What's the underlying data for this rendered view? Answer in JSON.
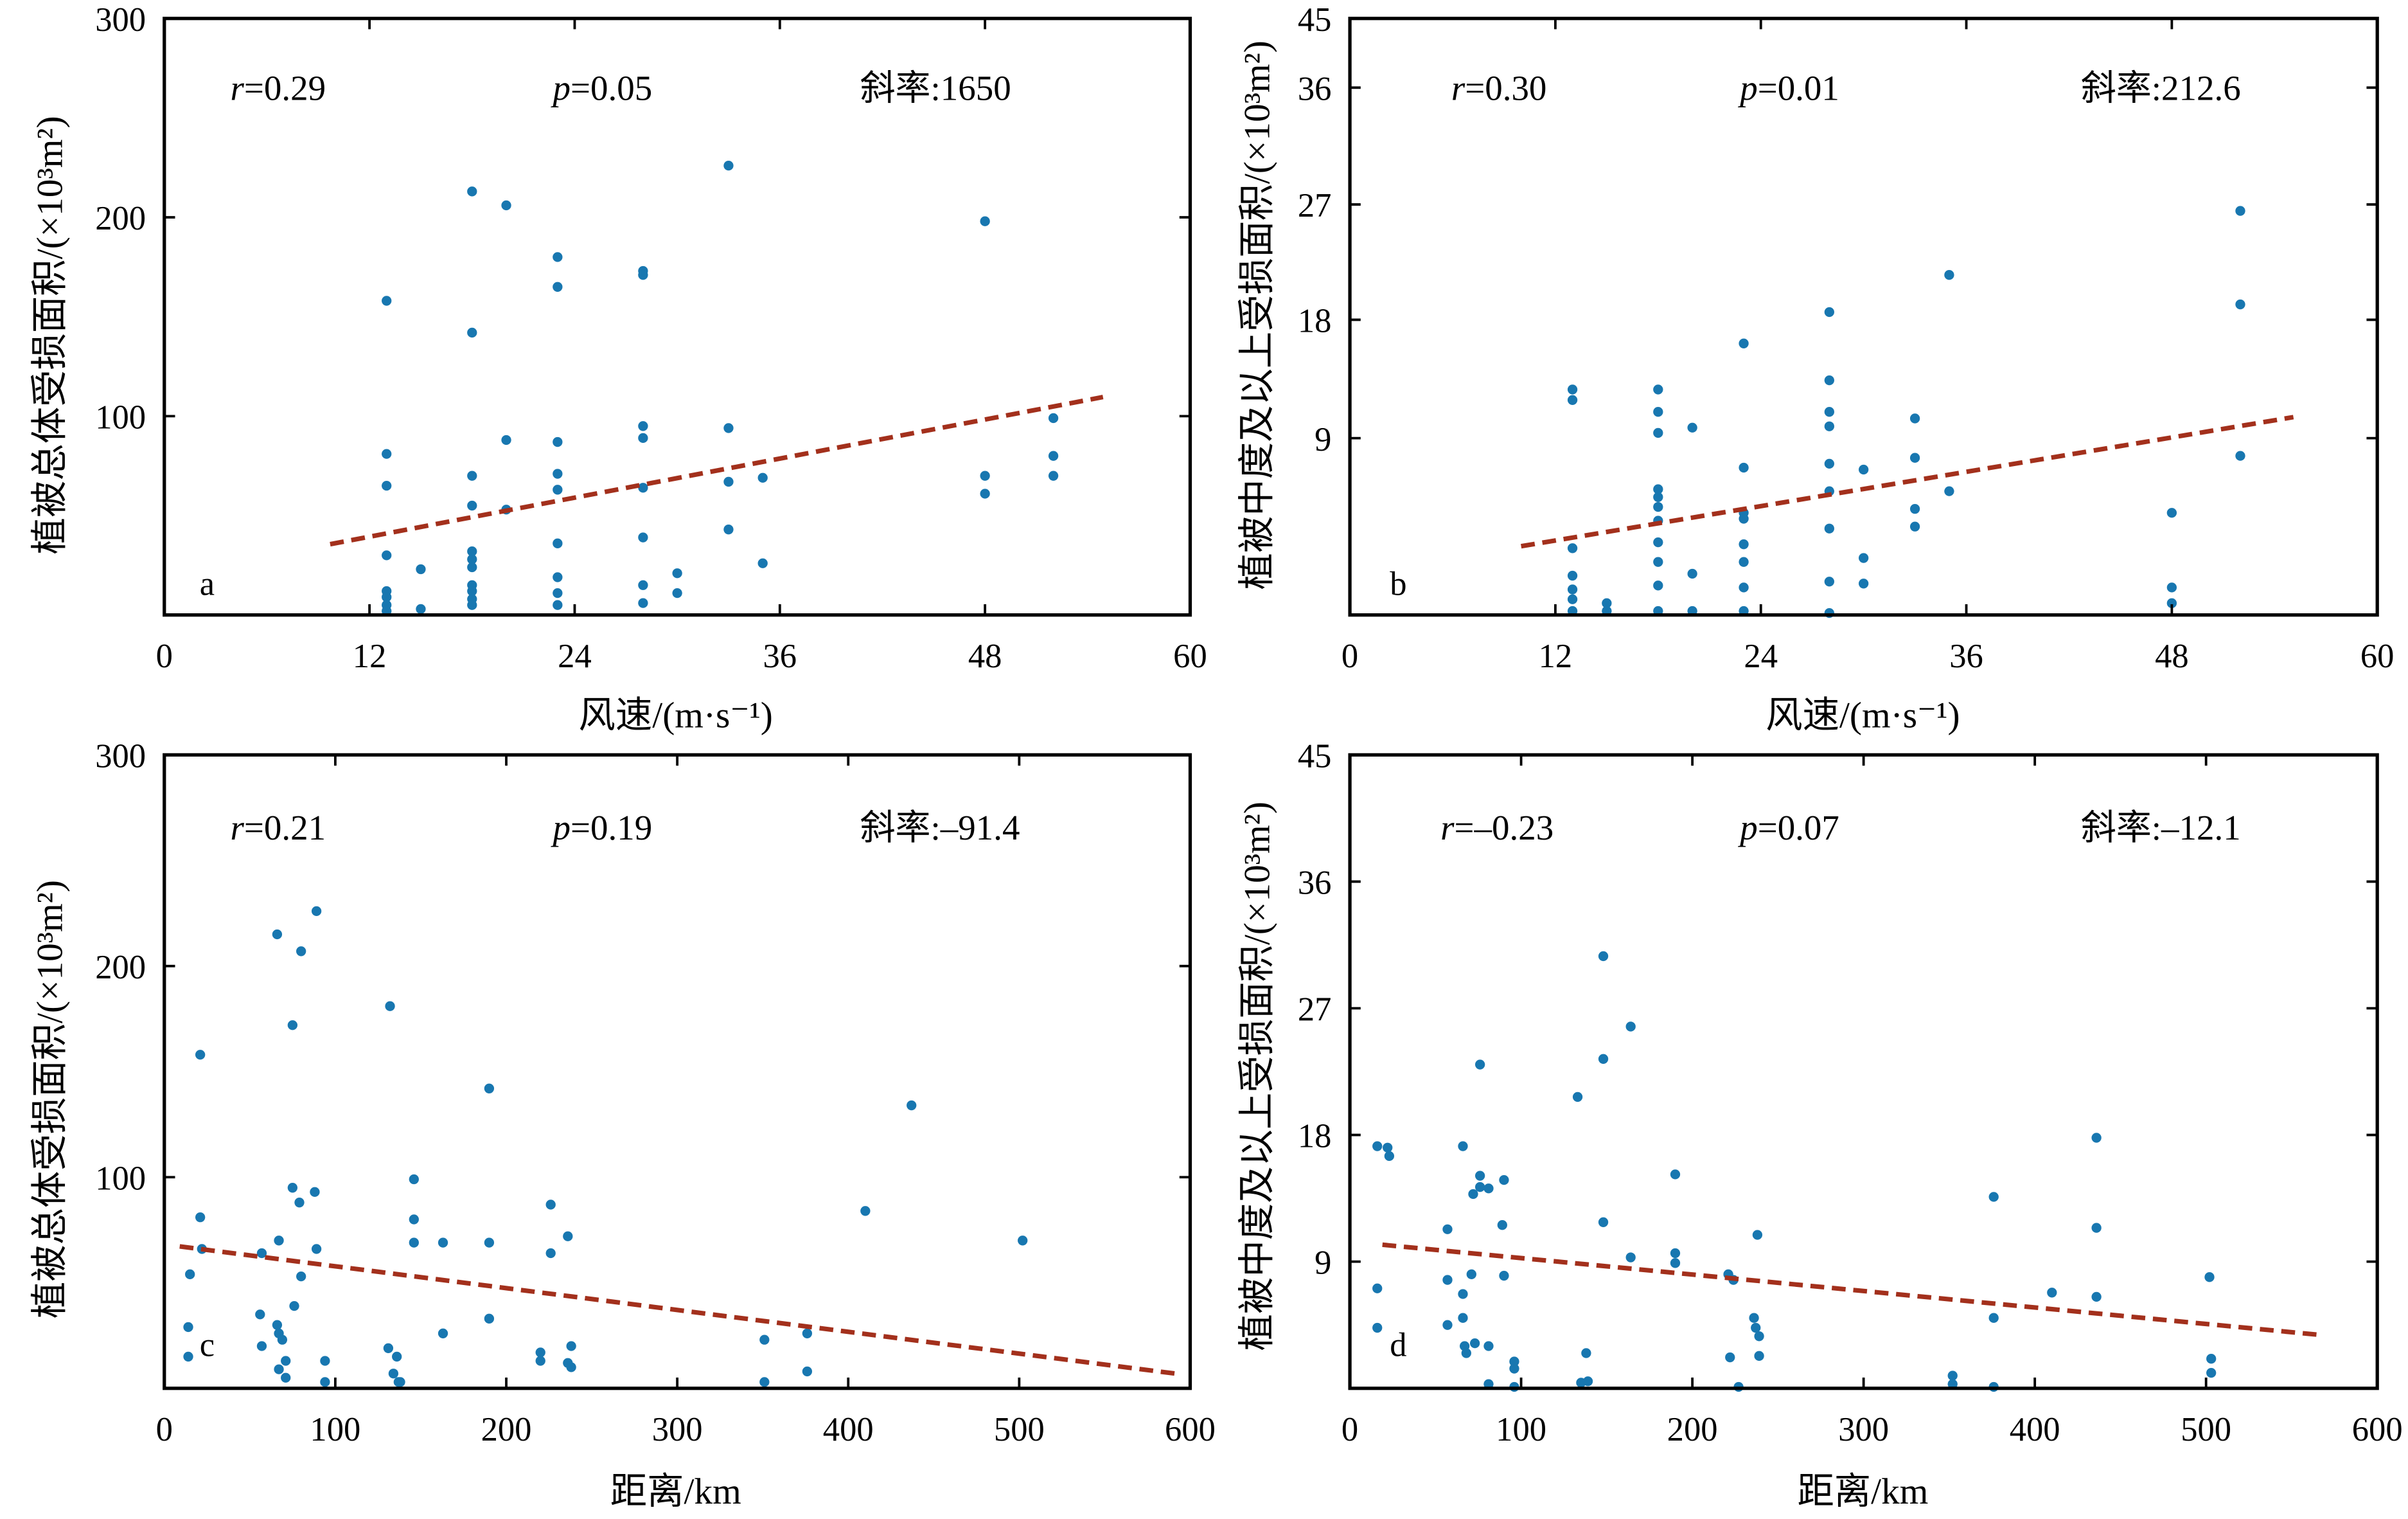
{
  "colors": {
    "points": "#1877b0",
    "trend": "#a3301c",
    "axes": "#000000"
  },
  "chart_data": [
    {
      "type": "scatter",
      "panel_label": "a",
      "xlabel": "风速/(m·s⁻¹)",
      "ylabel": "植被总体受损面积/(×10³m²)",
      "xlim": [
        0,
        60
      ],
      "ylim": [
        0,
        300
      ],
      "xticks": [
        0,
        12,
        24,
        36,
        48,
        60
      ],
      "yticks": [
        100,
        200,
        300
      ],
      "grid": false,
      "x": [
        13,
        13,
        13,
        13,
        13,
        13,
        13,
        13,
        15,
        15,
        18,
        18,
        18,
        18,
        18,
        18,
        18,
        18,
        18,
        18,
        18,
        20,
        20,
        20,
        23,
        23,
        23,
        23,
        23,
        23,
        23,
        23,
        23,
        28,
        28,
        28,
        28,
        28,
        28,
        28,
        28,
        30,
        30,
        33,
        33,
        33,
        33,
        35,
        35,
        48,
        48,
        48,
        52,
        52,
        52
      ],
      "y": [
        158,
        81,
        65,
        30,
        12,
        9,
        5,
        2,
        23,
        3,
        213,
        142,
        70,
        55,
        32,
        28,
        24,
        15,
        12,
        8,
        5,
        206,
        88,
        53,
        180,
        165,
        87,
        71,
        63,
        36,
        19,
        11,
        5,
        173,
        171,
        95,
        89,
        64,
        39,
        15,
        6,
        21,
        11,
        226,
        94,
        67,
        43,
        69,
        26,
        198,
        70,
        61,
        99,
        80,
        70
      ],
      "trend": {
        "x": [
          9.7,
          54.9
        ],
        "y": [
          35.6,
          109.6
        ]
      },
      "annotations": {
        "r_symbol": "r",
        "r_value": "=0.29",
        "p_symbol": "p",
        "p_value": "=0.05",
        "slope": "斜率:1650"
      }
    },
    {
      "type": "scatter",
      "panel_label": "b",
      "xlabel": "风速/(m·s⁻¹)",
      "ylabel": "植被中度及以上受损面积/(×10³m²)",
      "xlim": [
        0,
        60
      ],
      "ylim": [
        0,
        45
      ],
      "xticks": [
        0,
        12,
        24,
        36,
        48,
        60
      ],
      "yticks": [
        9,
        18,
        27,
        36,
        45
      ],
      "grid": false,
      "x": [
        13,
        13,
        13,
        13,
        13,
        13,
        13,
        15,
        15,
        18,
        18,
        18,
        18,
        18,
        18,
        18,
        18,
        18,
        18,
        18,
        20,
        20,
        20,
        23,
        23,
        23,
        23,
        23,
        23,
        23,
        23,
        28,
        28,
        28,
        28,
        28,
        28,
        28,
        28,
        28,
        30,
        30,
        30,
        33,
        33,
        33,
        33,
        35,
        35,
        48,
        48,
        48,
        52,
        52,
        52
      ],
      "y": [
        12.7,
        11.9,
        3.4,
        2.0,
        1.3,
        0.8,
        0.2,
        0.6,
        0.2,
        12.7,
        11.0,
        9.4,
        6.4,
        6.0,
        5.5,
        4.8,
        3.7,
        2.7,
        1.5,
        0.2,
        9.8,
        2.1,
        0.2,
        16.2,
        7.5,
        5.2,
        4.9,
        3.6,
        2.7,
        1.4,
        0.2,
        18.6,
        13.4,
        11.0,
        9.9,
        7.7,
        6.3,
        4.4,
        1.7,
        0.1,
        7.4,
        2.9,
        1.6,
        10.5,
        8.0,
        5.4,
        4.5,
        21.5,
        6.3,
        5.2,
        1.4,
        0.6,
        26.5,
        19.2,
        8.1
      ],
      "trend": {
        "x": [
          10.0,
          55.1
        ],
        "y": [
          3.5,
          10.6
        ]
      },
      "annotations": {
        "r_symbol": "r",
        "r_value": "=0.30",
        "p_symbol": "p",
        "p_value": "=0.01",
        "slope": "斜率:212.6"
      }
    },
    {
      "type": "scatter",
      "panel_label": "c",
      "xlabel": "距离/km",
      "ylabel": "植被总体受损面积/(×10³m²)",
      "xlim": [
        0,
        600
      ],
      "ylim": [
        0,
        300
      ],
      "xticks": [
        0,
        100,
        200,
        300,
        400,
        500,
        600
      ],
      "yticks": [
        100,
        200,
        300
      ],
      "grid": false,
      "x": [
        14,
        14,
        15,
        21,
        21,
        22,
        56,
        57,
        57,
        66,
        67,
        66,
        67,
        67,
        69,
        71,
        71,
        75,
        75,
        76,
        80,
        79,
        80,
        88,
        89,
        89,
        94,
        94,
        132,
        131,
        134,
        136,
        137,
        138,
        146,
        146,
        146,
        163,
        163,
        190,
        190,
        190,
        220,
        220,
        226,
        226,
        236,
        236,
        238,
        238,
        351,
        351,
        376,
        376,
        410,
        437,
        502
      ],
      "y": [
        29,
        15,
        54,
        158,
        81,
        66,
        35,
        64,
        20,
        215,
        70,
        30,
        26,
        9,
        23,
        13,
        5,
        95,
        172,
        39,
        207,
        88,
        53,
        93,
        226,
        66,
        13,
        3,
        181,
        19,
        7,
        15,
        3,
        3,
        99,
        80,
        69,
        69,
        26,
        142,
        69,
        33,
        17,
        13,
        87,
        64,
        72,
        12,
        20,
        10,
        23,
        3,
        26,
        8,
        84,
        134,
        70
      ],
      "trend": {
        "x": [
          9,
          595
        ],
        "y": [
          67.2,
          6.6
        ]
      },
      "annotations": {
        "r_symbol": "r",
        "r_value": "=0.21",
        "p_symbol": "p",
        "p_value": "=0.19",
        "slope": "斜率:–91.4"
      }
    },
    {
      "type": "scatter",
      "panel_label": "d",
      "xlabel": "距离/km",
      "ylabel": "植被中度及以上受损面积/(×10³m²)",
      "xlim": [
        0,
        600
      ],
      "ylim": [
        0,
        45
      ],
      "xticks": [
        0,
        100,
        200,
        300,
        400,
        500,
        600
      ],
      "yticks": [
        9,
        18,
        27,
        36,
        45
      ],
      "grid": false,
      "x": [
        16,
        16,
        16,
        22,
        23,
        57,
        57,
        57,
        66,
        66,
        66,
        67,
        68,
        71,
        72,
        73,
        76,
        76,
        76,
        81,
        81,
        81,
        89,
        90,
        90,
        96,
        96,
        96,
        133,
        135,
        138,
        139,
        148,
        148,
        148,
        164,
        164,
        190,
        190,
        190,
        221,
        222,
        224,
        227,
        236,
        237,
        238,
        239,
        239,
        352,
        352,
        376,
        376,
        376,
        410,
        436,
        436,
        436,
        502,
        503,
        503
      ],
      "y": [
        17.2,
        7.1,
        4.3,
        17.1,
        16.5,
        11.3,
        7.7,
        4.5,
        17.2,
        6.7,
        5.0,
        3.0,
        2.5,
        8.1,
        13.8,
        3.2,
        23.0,
        15.1,
        14.3,
        14.2,
        3.0,
        0.3,
        11.6,
        14.8,
        8.0,
        1.9,
        1.4,
        0.1,
        20.7,
        0.4,
        2.5,
        0.5,
        30.7,
        23.4,
        11.8,
        25.7,
        9.3,
        15.2,
        9.6,
        8.9,
        8.1,
        2.2,
        7.7,
        0.1,
        5.0,
        4.3,
        10.9,
        3.7,
        2.3,
        0.9,
        0.3,
        13.6,
        5.0,
        0.1,
        6.8,
        17.8,
        11.4,
        6.5,
        7.9,
        2.1,
        1.1
      ],
      "trend": {
        "x": [
          19,
          566
        ],
        "y": [
          10.2,
          3.8
        ]
      },
      "annotations": {
        "r_symbol": "r",
        "r_value": "=–0.23",
        "p_symbol": "p",
        "p_value": "=0.07",
        "slope": "斜率:–12.1"
      }
    }
  ]
}
